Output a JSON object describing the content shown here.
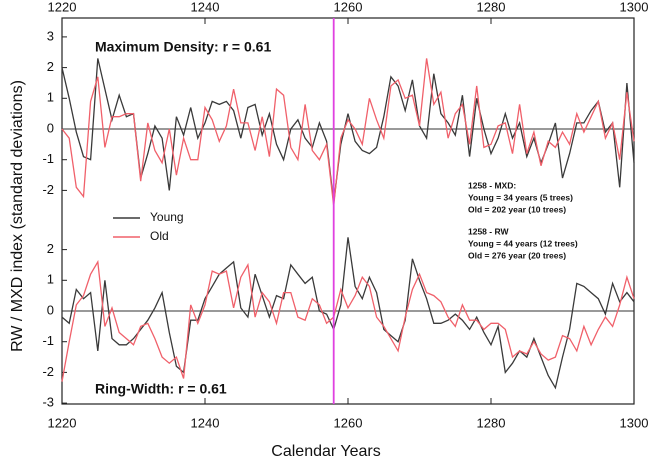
{
  "chart_data": {
    "type": "line",
    "xlabel": "Calendar Years",
    "ylabel": "RW / MXD index (standard deviations)",
    "xlim": [
      1220,
      1300
    ],
    "xticks": [
      1220,
      1240,
      1260,
      1280,
      1300
    ],
    "marker_line": {
      "x": 1258,
      "color": "#e040e0"
    },
    "series": [
      {
        "name": "Young",
        "color": "#3a3a3a"
      },
      {
        "name": "Old",
        "color": "#f0606a"
      }
    ],
    "annotations": [
      "1258 - MXD:",
      "Young = 34 years (5 trees)",
      "Old = 202 year (10 trees)",
      "1258 - RW",
      "Young = 44 years (12 trees)",
      "Old = 276 year (20 trees)"
    ],
    "x": [
      1220,
      1221,
      1222,
      1223,
      1224,
      1225,
      1226,
      1227,
      1228,
      1229,
      1230,
      1231,
      1232,
      1233,
      1234,
      1235,
      1236,
      1237,
      1238,
      1239,
      1240,
      1241,
      1242,
      1243,
      1244,
      1245,
      1246,
      1247,
      1248,
      1249,
      1250,
      1251,
      1252,
      1253,
      1254,
      1255,
      1256,
      1257,
      1258,
      1259,
      1260,
      1261,
      1262,
      1263,
      1264,
      1265,
      1266,
      1267,
      1268,
      1269,
      1270,
      1271,
      1272,
      1273,
      1274,
      1275,
      1276,
      1277,
      1278,
      1279,
      1280,
      1281,
      1282,
      1283,
      1284,
      1285,
      1286,
      1287,
      1288,
      1289,
      1290,
      1291,
      1292,
      1293,
      1294,
      1295,
      1296,
      1297,
      1298,
      1299,
      1300
    ],
    "panels": [
      {
        "title": "Maximum Density: r = 0.61",
        "ylim": [
          -3,
          3
        ],
        "yticks": [
          3,
          2,
          1,
          0,
          -1,
          -2
        ],
        "values": [
          [
            2.0,
            1.0,
            -0.1,
            -0.9,
            -1.0,
            2.3,
            1.3,
            0.3,
            1.1,
            0.4,
            0.5,
            -1.6,
            -0.8,
            0.1,
            -0.3,
            -2.0,
            0.4,
            -0.2,
            0.7,
            -0.3,
            0.2,
            0.9,
            0.8,
            0.9,
            0.6,
            -0.3,
            0.7,
            0.8,
            -0.2,
            0.5,
            -0.5,
            -1.0,
            0.0,
            0.3,
            -0.3,
            -0.6,
            0.2,
            -0.4,
            -2.4,
            -0.5,
            0.5,
            -0.4,
            -0.7,
            -0.8,
            -0.6,
            0.4,
            1.7,
            1.4,
            0.6,
            1.6,
            0.1,
            -0.3,
            1.8,
            0.5,
            0.2,
            -0.2,
            1.1,
            -0.9,
            1.0,
            0.0,
            -0.8,
            -0.3,
            0.5,
            -0.3,
            0.2,
            -0.9,
            -0.3,
            -1.1,
            -0.5,
            0.2,
            -1.6,
            -0.8,
            0.2,
            0.2,
            0.6,
            0.9,
            -0.1,
            0.2,
            -1.9,
            1.5,
            -1.1
          ],
          [
            0.0,
            -0.3,
            -1.9,
            -2.2,
            0.9,
            1.7,
            -0.6,
            0.4,
            0.4,
            0.5,
            0.5,
            -1.7,
            0.2,
            -0.7,
            -1.1,
            0.0,
            -1.5,
            -0.3,
            -1.0,
            -1.0,
            0.7,
            0.3,
            -0.4,
            0.1,
            1.3,
            0.2,
            0.2,
            -0.7,
            0.4,
            -0.9,
            1.3,
            1.1,
            -0.6,
            -1.0,
            0.8,
            -0.7,
            -1.0,
            -0.5,
            -2.5,
            -0.3,
            0.3,
            0.0,
            -0.5,
            1.0,
            0.3,
            -0.3,
            1.4,
            1.6,
            1.0,
            1.1,
            0.1,
            2.3,
            0.8,
            1.2,
            -0.3,
            0.5,
            0.8,
            -0.5,
            1.4,
            -0.6,
            -0.5,
            0.1,
            0.2,
            -0.8,
            0.8,
            -0.8,
            -0.1,
            -1.2,
            -0.4,
            -0.6,
            -0.1,
            -0.5,
            0.5,
            -0.1,
            0.4,
            0.9,
            -0.3,
            0.2,
            -1.0,
            1.2,
            -0.4
          ]
        ]
      },
      {
        "title": "Ring-Width: r = 0.61",
        "ylim": [
          -3,
          3
        ],
        "yticks": [
          2,
          1,
          0,
          -1,
          -2,
          -3
        ],
        "values": [
          [
            -0.2,
            -0.4,
            0.7,
            0.4,
            0.6,
            -1.3,
            1.0,
            -0.9,
            -1.1,
            -1.1,
            -0.9,
            -0.6,
            -0.3,
            0.1,
            0.6,
            -0.7,
            -1.8,
            -2.0,
            -0.3,
            -0.3,
            0.4,
            0.8,
            1.2,
            1.4,
            1.6,
            0.1,
            -0.2,
            1.2,
            0.5,
            -0.2,
            0.5,
            0.4,
            1.5,
            1.2,
            0.9,
            1.1,
            0.0,
            -0.1,
            -0.6,
            0.2,
            2.4,
            0.8,
            0.4,
            1.1,
            0.6,
            -0.6,
            -0.8,
            -1.0,
            -0.3,
            1.7,
            1.0,
            0.4,
            -0.4,
            -0.4,
            -0.3,
            -0.1,
            -0.3,
            -0.6,
            -0.2,
            -0.7,
            -1.1,
            -0.5,
            -2.0,
            -1.7,
            -1.3,
            -1.5,
            -0.9,
            -1.5,
            -2.1,
            -2.5,
            -1.5,
            -0.6,
            0.9,
            0.8,
            0.6,
            0.4,
            -0.1,
            0.9,
            0.3,
            0.6,
            0.3
          ],
          [
            -2.3,
            -1.0,
            0.2,
            0.5,
            1.2,
            1.6,
            -0.5,
            0.1,
            -0.7,
            -0.9,
            -1.1,
            -0.5,
            -0.4,
            -0.9,
            -1.5,
            -1.7,
            -1.5,
            -2.2,
            0.2,
            -0.4,
            0.2,
            1.3,
            1.2,
            1.3,
            0.1,
            1.1,
            1.5,
            -0.2,
            0.6,
            0.3,
            -0.4,
            0.6,
            0.6,
            -0.2,
            -0.3,
            0.4,
            0.2,
            -0.4,
            -0.2,
            0.7,
            0.1,
            0.5,
            1.1,
            0.8,
            -0.2,
            -0.5,
            -0.9,
            -1.3,
            -0.2,
            0.7,
            1.2,
            0.6,
            0.5,
            0.3,
            -0.2,
            -0.5,
            0.2,
            -0.3,
            -0.3,
            -0.6,
            -0.4,
            -0.4,
            -0.6,
            -1.5,
            -1.3,
            -1.4,
            -1.0,
            -1.4,
            -1.6,
            -1.5,
            -0.8,
            -0.9,
            -1.3,
            -0.5,
            -1.1,
            -0.6,
            -0.2,
            -0.5,
            0.2,
            1.1,
            0.4
          ]
        ]
      }
    ]
  }
}
